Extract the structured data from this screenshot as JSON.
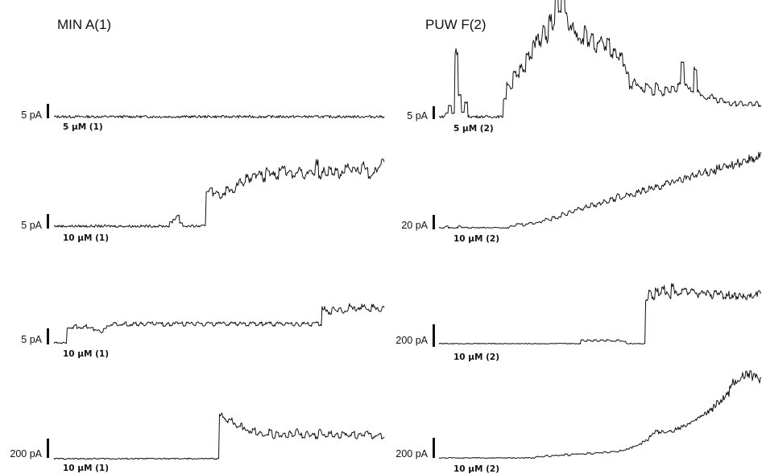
{
  "colors": {
    "trace": "#111111",
    "background": "#ffffff"
  },
  "chart_data": [
    {
      "type": "line",
      "title": "MIN A(1)",
      "scale_bar": "5 pA",
      "concentration_label": "5 µM (1)",
      "series": [
        {
          "values": [
            0,
            0,
            0,
            0,
            0,
            0,
            0,
            0,
            0,
            0,
            0,
            0,
            0,
            0,
            0,
            0,
            0,
            0,
            0,
            0,
            0,
            0,
            0,
            0,
            0,
            0,
            0,
            0,
            0,
            0,
            0,
            0,
            0,
            0,
            0,
            0,
            0,
            0,
            0,
            0,
            0,
            0,
            0,
            0,
            0,
            0,
            0,
            0,
            0,
            0,
            0,
            0,
            0,
            0,
            0,
            0,
            0,
            0,
            0,
            0,
            0,
            0,
            0,
            0,
            0,
            0,
            0,
            0,
            0,
            0,
            0,
            0,
            0,
            0,
            0,
            0,
            0,
            0,
            0,
            0,
            0,
            0,
            0,
            0,
            0,
            0,
            0,
            0,
            0,
            0,
            0,
            0,
            0,
            0,
            0,
            0,
            0,
            0,
            0,
            0
          ]
        }
      ],
      "ylim": [
        -1,
        30
      ]
    },
    {
      "type": "line",
      "title": "PUW F(2)",
      "scale_bar": "5 pA",
      "concentration_label": "5 µM (2)",
      "series": [
        {
          "values": [
            0,
            0,
            1,
            3,
            1,
            18,
            6,
            1,
            4,
            0,
            0,
            0,
            0,
            0,
            0,
            0,
            0,
            0,
            0,
            0,
            5,
            9,
            8,
            12,
            11,
            14,
            13,
            17,
            16,
            20,
            22,
            20,
            24,
            21,
            27,
            25,
            33,
            29,
            35,
            28,
            24,
            25,
            23,
            22,
            21,
            24,
            20,
            22,
            18,
            20,
            21,
            19,
            22,
            17,
            18,
            16,
            17,
            14,
            12,
            8,
            10,
            9,
            8,
            7,
            9,
            8,
            6,
            9,
            7,
            6,
            8,
            7,
            8,
            7,
            9,
            15,
            9,
            8,
            7,
            13,
            7,
            6,
            5,
            5,
            6,
            5,
            4,
            5,
            4,
            4,
            3,
            4,
            3,
            4,
            3,
            3,
            4,
            3,
            4,
            3
          ]
        }
      ],
      "ylim": [
        -1,
        30
      ]
    },
    {
      "type": "line",
      "title": "",
      "scale_bar": "5 pA",
      "concentration_label": "10 µM (1)",
      "series": [
        {
          "values": [
            0,
            0,
            0,
            0,
            0,
            0,
            0,
            0,
            0,
            0,
            0,
            0,
            0,
            0,
            0,
            0,
            0,
            0,
            0,
            0,
            0,
            0,
            0,
            0,
            0,
            0,
            0,
            0,
            0,
            0,
            0,
            0,
            0,
            0,
            0,
            1,
            2,
            3,
            1,
            0,
            0,
            0,
            0,
            0,
            0,
            0,
            10,
            11,
            9,
            10,
            8,
            9,
            11,
            10,
            10,
            12,
            13,
            12,
            14,
            13,
            15,
            14,
            15,
            13,
            16,
            15,
            15,
            14,
            16,
            17,
            15,
            16,
            14,
            15,
            16,
            14,
            15,
            16,
            15,
            18,
            14,
            16,
            15,
            17,
            15,
            16,
            14,
            15,
            17,
            16,
            16,
            16,
            15,
            18,
            17,
            14,
            15,
            16,
            17,
            19
          ]
        }
      ],
      "ylim": [
        -2,
        30
      ]
    },
    {
      "type": "line",
      "title": "",
      "scale_bar": "20 pA",
      "concentration_label": "10 µM (2)",
      "series": [
        {
          "values": [
            0,
            0,
            1,
            0,
            0,
            0,
            1,
            0,
            0,
            0,
            0,
            0,
            0,
            0,
            0,
            0,
            0,
            0,
            0,
            0,
            0,
            0,
            1,
            1,
            2,
            2,
            1,
            2,
            3,
            2,
            3,
            3,
            4,
            5,
            4,
            6,
            5,
            6,
            8,
            7,
            9,
            8,
            10,
            11,
            10,
            12,
            11,
            13,
            12,
            14,
            13,
            15,
            14,
            16,
            15,
            18,
            16,
            17,
            19,
            18,
            17,
            20,
            19,
            21,
            20,
            22,
            21,
            23,
            22,
            24,
            25,
            24,
            26,
            25,
            27,
            26,
            28,
            27,
            29,
            28,
            30,
            29,
            31,
            30,
            32,
            31,
            33,
            32,
            34,
            33,
            35,
            34,
            36,
            35,
            37,
            36,
            38,
            37,
            38,
            40
          ]
        }
      ],
      "ylim": [
        -2,
        60
      ]
    },
    {
      "type": "line",
      "title": "",
      "scale_bar": "5 pA",
      "concentration_label": "10 µM (1)",
      "series": [
        {
          "values": [
            0,
            0,
            0,
            0,
            6,
            6,
            7,
            6,
            6,
            7,
            6,
            6,
            5,
            5,
            4,
            6,
            7,
            7,
            8,
            7,
            7,
            8,
            7,
            7,
            8,
            7,
            8,
            7,
            8,
            8,
            7,
            8,
            8,
            7,
            8,
            7,
            8,
            8,
            8,
            7,
            8,
            8,
            7,
            8,
            8,
            7,
            8,
            8,
            7,
            8,
            8,
            8,
            7,
            8,
            8,
            7,
            8,
            8,
            7,
            8,
            8,
            7,
            8,
            7,
            8,
            8,
            7,
            8,
            8,
            7,
            8,
            8,
            7,
            8,
            7,
            8,
            8,
            7,
            8,
            8,
            7,
            14,
            13,
            12,
            14,
            13,
            14,
            12,
            13,
            15,
            14,
            13,
            14,
            15,
            14,
            13,
            15,
            14,
            13,
            14
          ]
        }
      ],
      "ylim": [
        -2,
        40
      ]
    },
    {
      "type": "line",
      "title": "",
      "scale_bar": "200 pA",
      "concentration_label": "10 µM (2)",
      "series": [
        {
          "values": [
            0,
            0,
            0,
            0,
            0,
            0,
            0,
            0,
            0,
            0,
            0,
            0,
            0,
            0,
            0,
            0,
            0,
            0,
            0,
            0,
            0,
            0,
            0,
            0,
            0,
            0,
            0,
            0,
            0,
            0,
            0,
            0,
            0,
            0,
            0,
            0,
            0,
            0,
            0,
            0,
            0,
            0,
            0,
            0,
            3,
            2,
            3,
            2,
            3,
            2,
            3,
            2,
            3,
            2,
            2,
            3,
            2,
            2,
            0,
            0,
            0,
            0,
            0,
            0,
            34,
            40,
            36,
            42,
            38,
            44,
            40,
            37,
            45,
            40,
            38,
            41,
            43,
            39,
            42,
            40,
            38,
            41,
            39,
            42,
            37,
            40,
            38,
            41,
            36,
            39,
            37,
            38,
            36,
            39,
            37,
            36,
            38,
            37,
            39,
            41
          ]
        }
      ],
      "ylim": [
        -2,
        80
      ]
    },
    {
      "type": "line",
      "title": "",
      "scale_bar": "200 pA",
      "concentration_label": "10 µM (1)",
      "series": [
        {
          "values": [
            0,
            0,
            0,
            0,
            0,
            0,
            0,
            0,
            0,
            0,
            0,
            0,
            0,
            0,
            0,
            0,
            0,
            0,
            0,
            0,
            0,
            0,
            0,
            0,
            0,
            0,
            0,
            0,
            0,
            0,
            0,
            0,
            0,
            0,
            0,
            0,
            0,
            0,
            0,
            0,
            0,
            0,
            0,
            0,
            0,
            0,
            0,
            0,
            0,
            0,
            23,
            22,
            20,
            21,
            19,
            17,
            18,
            16,
            15,
            14,
            16,
            13,
            14,
            12,
            13,
            15,
            11,
            14,
            12,
            13,
            11,
            14,
            12,
            15,
            13,
            11,
            14,
            12,
            13,
            11,
            15,
            13,
            12,
            14,
            12,
            13,
            11,
            14,
            13,
            12,
            14,
            11,
            13,
            12,
            14,
            13,
            11,
            12,
            13,
            11
          ]
        }
      ],
      "ylim": [
        -1,
        50
      ]
    },
    {
      "type": "line",
      "title": "",
      "scale_bar": "200 pA",
      "concentration_label": "10 µM (2)",
      "series": [
        {
          "values": [
            0,
            0,
            0,
            0,
            0,
            0,
            0,
            0,
            0,
            0,
            0,
            0,
            0,
            0,
            0,
            0,
            0,
            0,
            0,
            0,
            0,
            0,
            0,
            0,
            0,
            0,
            0,
            0,
            0,
            0,
            1,
            1,
            1,
            2,
            1,
            2,
            2,
            2,
            2,
            3,
            2,
            3,
            3,
            3,
            3,
            3,
            4,
            3,
            4,
            4,
            4,
            5,
            4,
            5,
            5,
            5,
            6,
            6,
            7,
            8,
            9,
            10,
            11,
            13,
            14,
            17,
            19,
            21,
            20,
            21,
            20,
            22,
            21,
            23,
            24,
            25,
            26,
            27,
            28,
            30,
            32,
            33,
            35,
            37,
            39,
            41,
            44,
            46,
            48,
            51,
            56,
            60,
            62,
            63,
            66,
            67,
            66,
            65,
            64,
            63
          ]
        }
      ],
      "ylim": [
        -2,
        75
      ]
    }
  ],
  "labels": {
    "col1_title": "MIN A(1)",
    "col2_title": "PUW F(2)"
  }
}
